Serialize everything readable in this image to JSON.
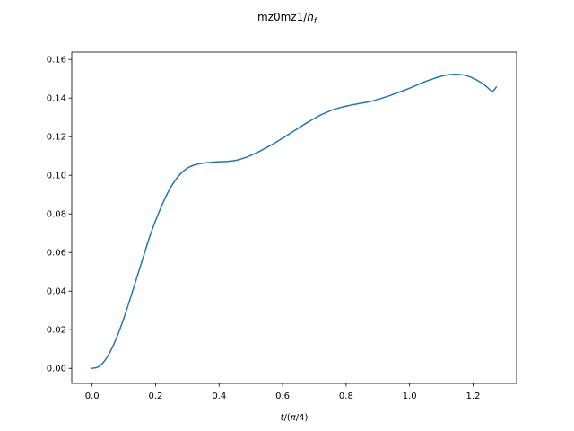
{
  "chart_data": {
    "type": "line",
    "title": {
      "pre": "mz0mz1/",
      "var": "h",
      "sub": "f"
    },
    "xlabel": {
      "var": "t",
      "rest": "/(",
      "pi": "π",
      "tail": "/4)"
    },
    "ylabel": "",
    "xlim": [
      -0.064,
      1.337
    ],
    "ylim": [
      -0.0078,
      0.1638
    ],
    "xticks": [
      0.0,
      0.2,
      0.4,
      0.6,
      0.8,
      1.0,
      1.2
    ],
    "xtick_labels": [
      "0.0",
      "0.2",
      "0.4",
      "0.6",
      "0.8",
      "1.0",
      "1.2"
    ],
    "yticks": [
      0.0,
      0.02,
      0.04,
      0.06,
      0.08,
      0.1,
      0.12,
      0.14,
      0.16
    ],
    "ytick_labels": [
      "0.00",
      "0.02",
      "0.04",
      "0.06",
      "0.08",
      "0.10",
      "0.12",
      "0.14",
      "0.16"
    ],
    "grid": false,
    "series": [
      {
        "color": "#1f77b4",
        "x": [
          0.0,
          0.02,
          0.04,
          0.06,
          0.08,
          0.1,
          0.12,
          0.14,
          0.16,
          0.18,
          0.2,
          0.22,
          0.24,
          0.26,
          0.28,
          0.3,
          0.32,
          0.34,
          0.36,
          0.38,
          0.4,
          0.42,
          0.44,
          0.46,
          0.48,
          0.5,
          0.52,
          0.54,
          0.56,
          0.58,
          0.6,
          0.62,
          0.64,
          0.66,
          0.68,
          0.7,
          0.72,
          0.74,
          0.76,
          0.78,
          0.8,
          0.82,
          0.84,
          0.86,
          0.88,
          0.9,
          0.92,
          0.94,
          0.96,
          0.98,
          1.0,
          1.02,
          1.04,
          1.06,
          1.08,
          1.1,
          1.12,
          1.14,
          1.16,
          1.18,
          1.2,
          1.22,
          1.24,
          1.26,
          1.273
        ],
        "y": [
          0.0,
          0.0008,
          0.004,
          0.0095,
          0.017,
          0.026,
          0.036,
          0.0465,
          0.057,
          0.0675,
          0.0765,
          0.0845,
          0.0915,
          0.097,
          0.101,
          0.1037,
          0.1052,
          0.106,
          0.1065,
          0.1068,
          0.107,
          0.1071,
          0.1074,
          0.108,
          0.109,
          0.1103,
          0.1118,
          0.1135,
          0.1153,
          0.1172,
          0.1192,
          0.1213,
          0.1234,
          0.1255,
          0.1275,
          0.1294,
          0.1312,
          0.1327,
          0.134,
          0.135,
          0.1358,
          0.1365,
          0.1371,
          0.1377,
          0.1384,
          0.1393,
          0.1403,
          0.1414,
          0.1426,
          0.1438,
          0.1451,
          0.1465,
          0.1479,
          0.1492,
          0.1503,
          0.1513,
          0.152,
          0.1523,
          0.1522,
          0.1515,
          0.1503,
          0.1485,
          0.1462,
          0.1436,
          0.1457
        ]
      }
    ]
  }
}
